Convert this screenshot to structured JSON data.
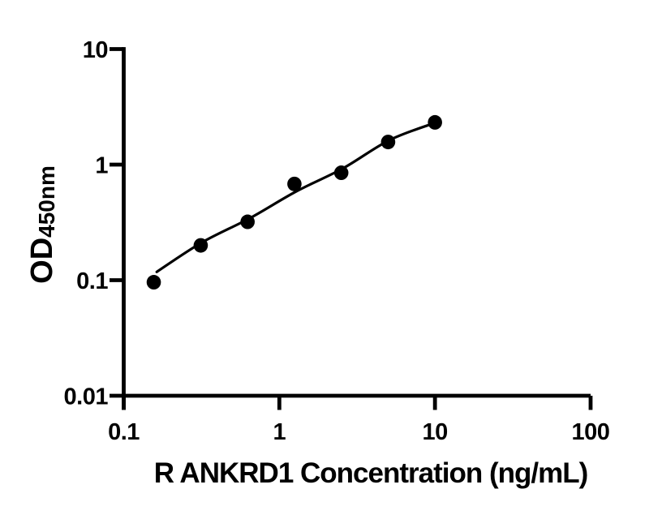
{
  "figure": {
    "background_color": "#ffffff",
    "ink_color": "#000000"
  },
  "chart_data": {
    "type": "scatter",
    "title": "",
    "xlabel": "R ANKRD1 Concentration (ng/mL)",
    "ylabel": {
      "main": "OD",
      "sub": "450nm"
    },
    "x_scale": "log10",
    "y_scale": "log10",
    "xlim": [
      0.1,
      100
    ],
    "ylim": [
      0.01,
      10
    ],
    "grid": false,
    "legend": "none",
    "x_ticks": [
      {
        "value": 0.1,
        "label": "0.1"
      },
      {
        "value": 1,
        "label": "1"
      },
      {
        "value": 10,
        "label": "10"
      },
      {
        "value": 100,
        "label": "100"
      }
    ],
    "y_ticks": [
      {
        "value": 0.01,
        "label": "0.01"
      },
      {
        "value": 0.1,
        "label": "0.1"
      },
      {
        "value": 1,
        "label": "1"
      },
      {
        "value": 10,
        "label": "10"
      }
    ],
    "series": [
      {
        "marker": "filled-circle",
        "color": "#000000",
        "points": [
          {
            "x": 0.156,
            "y": 0.096
          },
          {
            "x": 0.3125,
            "y": 0.2
          },
          {
            "x": 0.625,
            "y": 0.32
          },
          {
            "x": 1.25,
            "y": 0.68
          },
          {
            "x": 2.5,
            "y": 0.85
          },
          {
            "x": 5,
            "y": 1.57
          },
          {
            "x": 10,
            "y": 2.32
          }
        ]
      }
    ],
    "fit_curve": {
      "style": "smooth",
      "color": "#000000",
      "points": [
        {
          "x": 0.163,
          "y": 0.118
        },
        {
          "x": 0.318,
          "y": 0.212
        },
        {
          "x": 0.647,
          "y": 0.344
        },
        {
          "x": 1.28,
          "y": 0.585
        },
        {
          "x": 2.57,
          "y": 0.93
        },
        {
          "x": 5.1,
          "y": 1.63
        },
        {
          "x": 10.0,
          "y": 2.3
        }
      ]
    }
  }
}
